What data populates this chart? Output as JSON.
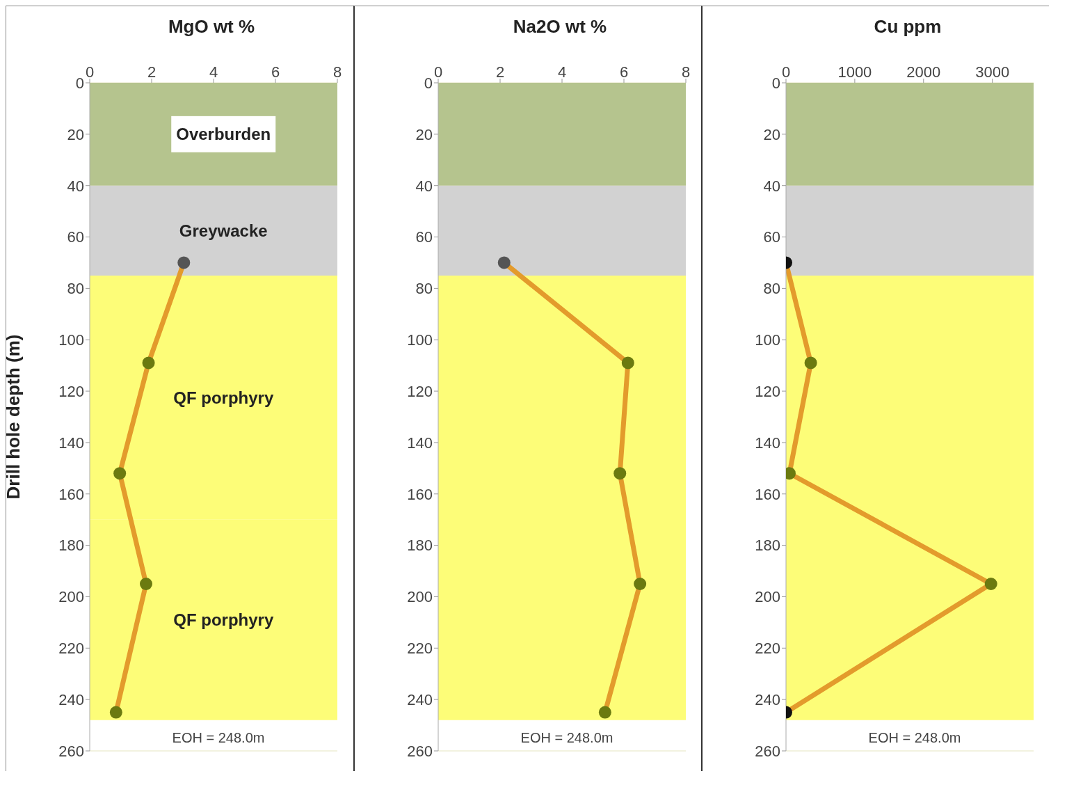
{
  "chart_data": [
    {
      "type": "line",
      "title": "MgO wt %",
      "ylabel": "Drill hole depth (m)",
      "xlim": [
        0,
        8
      ],
      "xticks": [
        0,
        2,
        4,
        6,
        8
      ],
      "ylim": [
        260,
        0
      ],
      "yticks": [
        0,
        20,
        40,
        60,
        80,
        100,
        120,
        140,
        160,
        180,
        200,
        220,
        240,
        260
      ],
      "grid": "y",
      "marker": "circle",
      "series": [
        {
          "color": "#e39b2c",
          "colors": [
            "#555555",
            "#6b7a10",
            "#6b7a10",
            "#6b7a10",
            "#6b7a10"
          ],
          "x": [
            3.04,
            1.9,
            0.97,
            1.82,
            0.85
          ],
          "values": [
            70,
            109,
            152,
            195,
            245
          ]
        }
      ],
      "bands": [
        {
          "axis": "y",
          "from": 0,
          "to": 40,
          "label": "Overburden",
          "color": "#b5c48e"
        },
        {
          "axis": "y",
          "from": 40,
          "to": 75,
          "label": "Greywacke",
          "color": "#d2d2d2"
        },
        {
          "axis": "y",
          "from": 75,
          "to": 170,
          "label": "QF porphyry",
          "color": "#fdfd78"
        },
        {
          "axis": "y",
          "from": 170,
          "to": 248,
          "label": "QF porphyry",
          "color": "#fdfd78"
        }
      ],
      "annotations": [
        "EOH = 248.0m"
      ]
    },
    {
      "type": "line",
      "title": "Na2O wt %",
      "xlim": [
        0,
        8
      ],
      "xticks": [
        0,
        2,
        4,
        6,
        8
      ],
      "ylim": [
        260,
        0
      ],
      "yticks": [
        0,
        20,
        40,
        60,
        80,
        100,
        120,
        140,
        160,
        180,
        200,
        220,
        240,
        260
      ],
      "grid": "y",
      "marker": "circle",
      "series": [
        {
          "color": "#e39b2c",
          "colors": [
            "#555555",
            "#6b7a10",
            "#6b7a10",
            "#6b7a10",
            "#6b7a10"
          ],
          "x": [
            2.13,
            6.13,
            5.87,
            6.52,
            5.39
          ],
          "values": [
            70,
            109,
            152,
            195,
            245
          ]
        }
      ],
      "bands": [
        {
          "axis": "y",
          "from": 0,
          "to": 40,
          "color": "#b5c48e"
        },
        {
          "axis": "y",
          "from": 40,
          "to": 75,
          "color": "#d2d2d2"
        },
        {
          "axis": "y",
          "from": 75,
          "to": 248,
          "color": "#fdfd78"
        }
      ],
      "annotations": [
        "EOH = 248.0m"
      ]
    },
    {
      "type": "line",
      "title": "Cu ppm",
      "xlim": [
        0,
        3600
      ],
      "xticks": [
        0,
        1000,
        2000,
        3000
      ],
      "ylim": [
        260,
        0
      ],
      "yticks": [
        0,
        20,
        40,
        60,
        80,
        100,
        120,
        140,
        160,
        180,
        200,
        220,
        240,
        260
      ],
      "grid": "y",
      "marker": "circle",
      "series": [
        {
          "color": "#e39b2c",
          "colors": [
            "#111111",
            "#6b7a10",
            "#6b7a10",
            "#6b7a10",
            "#111111"
          ],
          "x": [
            0,
            360,
            50,
            2980,
            0
          ],
          "values": [
            70,
            109,
            152,
            195,
            245
          ]
        }
      ],
      "bands": [
        {
          "axis": "y",
          "from": 0,
          "to": 40,
          "color": "#b5c48e"
        },
        {
          "axis": "y",
          "from": 40,
          "to": 75,
          "color": "#d2d2d2"
        },
        {
          "axis": "y",
          "from": 75,
          "to": 248,
          "color": "#fdfd78"
        }
      ],
      "annotations": [
        "EOH = 248.0m"
      ]
    }
  ]
}
